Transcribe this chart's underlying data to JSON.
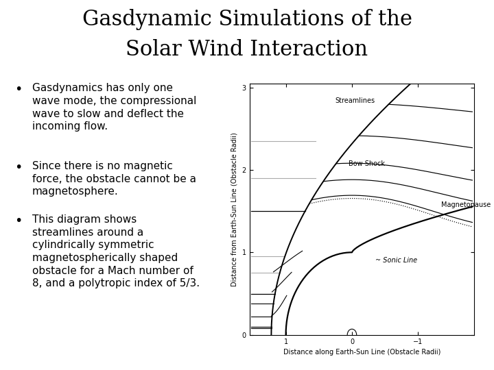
{
  "title_line1": "Gasdynamic Simulations of the",
  "title_line2": "Solar Wind Interaction",
  "title_fontsize": 22,
  "title_fontfamily": "serif",
  "bullet1": "Gasdynamics has only one\nwave mode, the compressional\nwave to slow and deflect the\nincoming flow.",
  "bullet2": "Since there is no magnetic\nforce, the obstacle cannot be a\nmagnetosphere.",
  "bullet3": "This diagram shows\nstreamlines around a\ncylindrically symmetric\nmagnetospherically shaped\nobstacle for a Mach number of\n8, and a polytropic index of 5/3.",
  "bullet_fontsize": 11,
  "background_color": "#ffffff",
  "plot_bg": "#ffffff",
  "xlabel": "Distance along Earth-Sun Line (Obstacle Radii)",
  "ylabel": "Distance from Earth-Sun Line (Obstacle Radii)",
  "xlim": [
    1.55,
    -1.85
  ],
  "ylim": [
    0.0,
    3.05
  ],
  "xticks": [
    1.0,
    0.0,
    -1.0
  ],
  "yticks": [
    0.0,
    1.0,
    2.0,
    3.0
  ],
  "label_streamlines": "Streamlines",
  "label_bow_shock": "Bow Shock",
  "label_magnetopause": "Magnetopause",
  "label_sonic": "~ Sonic Line",
  "line_color": "#000000",
  "dark_gray": "#555555",
  "gray_line_color": "#aaaaaa"
}
